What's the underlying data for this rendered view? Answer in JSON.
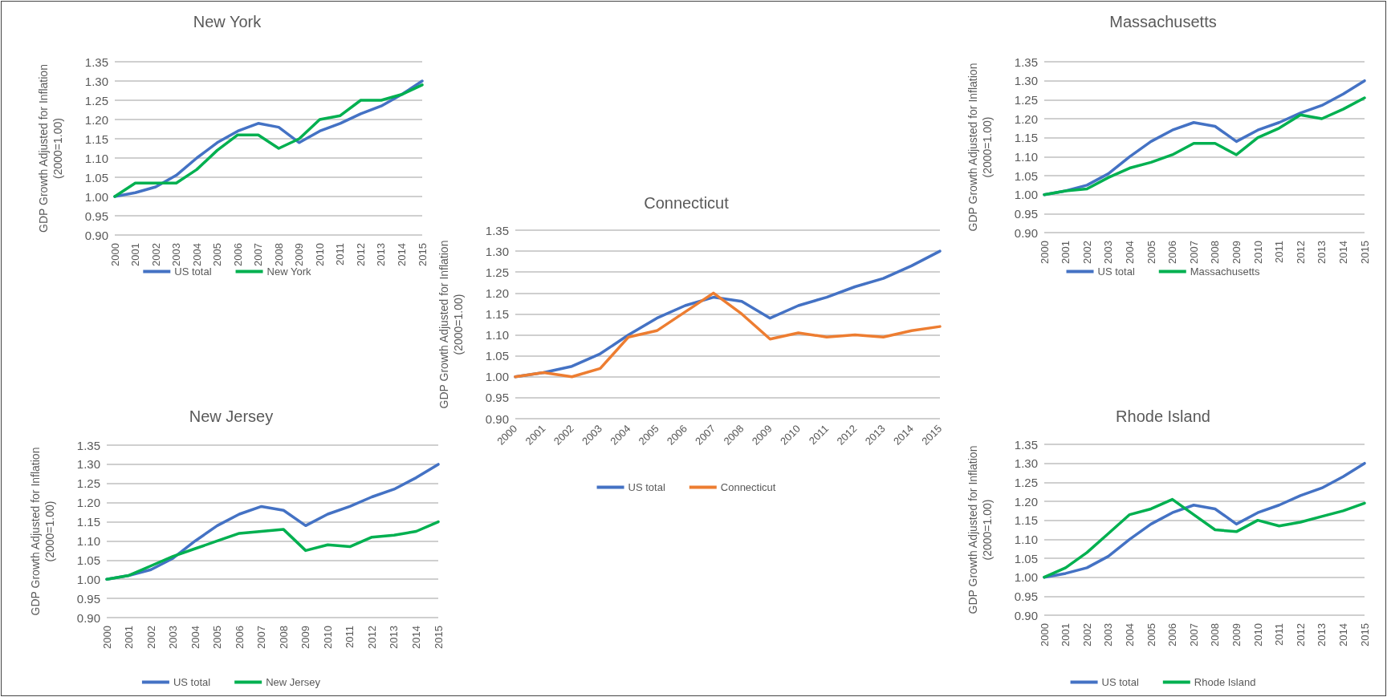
{
  "chart_data": [
    {
      "type": "line",
      "title": "New York",
      "ylabel": "GDP Growth Adjusted for Inflation\n(2000=1.00)",
      "categories": [
        "2000",
        "2001",
        "2002",
        "2003",
        "2004",
        "2005",
        "2006",
        "2007",
        "2008",
        "2009",
        "2010",
        "2011",
        "2012",
        "2013",
        "2014",
        "2015"
      ],
      "series": [
        {
          "name": "US total",
          "color": "#4472c4",
          "values": [
            1.0,
            1.01,
            1.025,
            1.055,
            1.1,
            1.14,
            1.17,
            1.19,
            1.18,
            1.14,
            1.17,
            1.19,
            1.215,
            1.235,
            1.265,
            1.3
          ]
        },
        {
          "name": "New York",
          "color": "#00b050",
          "values": [
            1.0,
            1.035,
            1.035,
            1.035,
            1.07,
            1.12,
            1.16,
            1.16,
            1.125,
            1.15,
            1.2,
            1.21,
            1.25,
            1.25,
            1.265,
            1.29
          ]
        }
      ],
      "ylim": [
        0.9,
        1.35
      ],
      "yticks": [
        {
          "value": 0.9,
          "label": "0.90"
        },
        {
          "value": 0.95,
          "label": "0.95"
        },
        {
          "value": 1.0,
          "label": "1.00"
        },
        {
          "value": 1.05,
          "label": "1.05"
        },
        {
          "value": 1.1,
          "label": "1.10"
        },
        {
          "value": 1.15,
          "label": "1.15"
        },
        {
          "value": 1.2,
          "label": "1.20"
        },
        {
          "value": 1.25,
          "label": "1.25"
        },
        {
          "value": 1.3,
          "label": "1.30"
        },
        {
          "value": 1.35,
          "label": "1.35"
        }
      ],
      "grid": "y",
      "legend": "bottom",
      "marker": "none",
      "line_style": "solid"
    },
    {
      "type": "line",
      "title": "Massachusetts",
      "ylabel": "GDP Growth Adjusted for Inflation\n(2000=1.00)",
      "categories": [
        "2000",
        "2001",
        "2002",
        "2003",
        "2004",
        "2005",
        "2006",
        "2007",
        "2008",
        "2009",
        "2010",
        "2011",
        "2012",
        "2013",
        "2014",
        "2015"
      ],
      "series": [
        {
          "name": "US total",
          "color": "#4472c4",
          "values": [
            1.0,
            1.01,
            1.025,
            1.055,
            1.1,
            1.14,
            1.17,
            1.19,
            1.18,
            1.14,
            1.17,
            1.19,
            1.215,
            1.235,
            1.265,
            1.3
          ]
        },
        {
          "name": "Massachusetts",
          "color": "#00b050",
          "values": [
            1.0,
            1.01,
            1.015,
            1.045,
            1.07,
            1.085,
            1.105,
            1.135,
            1.135,
            1.105,
            1.15,
            1.175,
            1.21,
            1.2,
            1.225,
            1.255
          ]
        }
      ],
      "ylim": [
        0.9,
        1.35
      ],
      "yticks": [
        {
          "value": 0.9,
          "label": "0.90"
        },
        {
          "value": 0.95,
          "label": "0.95"
        },
        {
          "value": 1.0,
          "label": "1.00"
        },
        {
          "value": 1.05,
          "label": "1.05"
        },
        {
          "value": 1.1,
          "label": "1.10"
        },
        {
          "value": 1.15,
          "label": "1.15"
        },
        {
          "value": 1.2,
          "label": "1.20"
        },
        {
          "value": 1.25,
          "label": "1.25"
        },
        {
          "value": 1.3,
          "label": "1.30"
        },
        {
          "value": 1.35,
          "label": "1.35"
        }
      ],
      "grid": "y",
      "legend": "bottom",
      "marker": "none",
      "line_style": "solid"
    },
    {
      "type": "line",
      "title": "Connecticut",
      "ylabel": "GDP Growth Adjusted for Inflation\n(2000=1.00)",
      "categories": [
        "2000",
        "2001",
        "2002",
        "2003",
        "2004",
        "2005",
        "2006",
        "2007",
        "2008",
        "2009",
        "2010",
        "2011",
        "2012",
        "2013",
        "2014",
        "2015"
      ],
      "series": [
        {
          "name": "US total",
          "color": "#4472c4",
          "values": [
            1.0,
            1.01,
            1.025,
            1.055,
            1.1,
            1.14,
            1.17,
            1.19,
            1.18,
            1.14,
            1.17,
            1.19,
            1.215,
            1.235,
            1.265,
            1.3
          ]
        },
        {
          "name": "Connecticut",
          "color": "#ed7d31",
          "values": [
            1.0,
            1.01,
            1.0,
            1.02,
            1.095,
            1.11,
            1.155,
            1.2,
            1.15,
            1.09,
            1.105,
            1.095,
            1.1,
            1.095,
            1.11,
            1.12
          ]
        }
      ],
      "ylim": [
        0.9,
        1.35
      ],
      "yticks": [
        {
          "value": 0.9,
          "label": "0.90"
        },
        {
          "value": 0.95,
          "label": "0.95"
        },
        {
          "value": 1.0,
          "label": "1.00"
        },
        {
          "value": 1.05,
          "label": "1.05"
        },
        {
          "value": 1.1,
          "label": "1.10"
        },
        {
          "value": 1.15,
          "label": "1.15"
        },
        {
          "value": 1.2,
          "label": "1.20"
        },
        {
          "value": 1.25,
          "label": "1.25"
        },
        {
          "value": 1.3,
          "label": "1.30"
        },
        {
          "value": 1.35,
          "label": "1.35"
        }
      ],
      "grid": "y",
      "legend": "bottom",
      "marker": "none",
      "line_style": "solid"
    },
    {
      "type": "line",
      "title": "New Jersey",
      "ylabel": "GDP Growth Adjusted for Inflation\n(2000=1.00)",
      "categories": [
        "2000",
        "2001",
        "2002",
        "2003",
        "2004",
        "2005",
        "2006",
        "2007",
        "2008",
        "2009",
        "2010",
        "2011",
        "2012",
        "2013",
        "2014",
        "2015"
      ],
      "series": [
        {
          "name": "US total",
          "color": "#4472c4",
          "values": [
            1.0,
            1.01,
            1.025,
            1.055,
            1.1,
            1.14,
            1.17,
            1.19,
            1.18,
            1.14,
            1.17,
            1.19,
            1.215,
            1.235,
            1.265,
            1.3
          ]
        },
        {
          "name": "New Jersey",
          "color": "#00b050",
          "values": [
            1.0,
            1.01,
            1.035,
            1.06,
            1.08,
            1.1,
            1.12,
            1.125,
            1.13,
            1.075,
            1.09,
            1.085,
            1.11,
            1.115,
            1.125,
            1.15
          ]
        }
      ],
      "ylim": [
        0.9,
        1.35
      ],
      "yticks": [
        {
          "value": 0.9,
          "label": "0.90"
        },
        {
          "value": 0.95,
          "label": "0.95"
        },
        {
          "value": 1.0,
          "label": "1.00"
        },
        {
          "value": 1.05,
          "label": "1.05"
        },
        {
          "value": 1.1,
          "label": "1.10"
        },
        {
          "value": 1.15,
          "label": "1.15"
        },
        {
          "value": 1.2,
          "label": "1.20"
        },
        {
          "value": 1.25,
          "label": "1.25"
        },
        {
          "value": 1.3,
          "label": "1.30"
        },
        {
          "value": 1.35,
          "label": "1.35"
        }
      ],
      "grid": "y",
      "legend": "bottom",
      "marker": "none",
      "line_style": "solid"
    },
    {
      "type": "line",
      "title": "Rhode Island",
      "ylabel": "GDP Growth Adjusted for Inflation\n(2000=1.00)",
      "categories": [
        "2000",
        "2001",
        "2002",
        "2003",
        "2004",
        "2005",
        "2006",
        "2007",
        "2008",
        "2009",
        "2010",
        "2011",
        "2012",
        "2013",
        "2014",
        "2015"
      ],
      "series": [
        {
          "name": "US total",
          "color": "#4472c4",
          "values": [
            1.0,
            1.01,
            1.025,
            1.055,
            1.1,
            1.14,
            1.17,
            1.19,
            1.18,
            1.14,
            1.17,
            1.19,
            1.215,
            1.235,
            1.265,
            1.3
          ]
        },
        {
          "name": "Rhode Island",
          "color": "#00b050",
          "values": [
            1.0,
            1.025,
            1.065,
            1.115,
            1.165,
            1.18,
            1.205,
            1.165,
            1.125,
            1.12,
            1.15,
            1.135,
            1.145,
            1.16,
            1.175,
            1.195
          ]
        }
      ],
      "ylim": [
        0.9,
        1.35
      ],
      "yticks": [
        {
          "value": 0.9,
          "label": "0.90"
        },
        {
          "value": 0.95,
          "label": "0.95"
        },
        {
          "value": 1.0,
          "label": "1.00"
        },
        {
          "value": 1.05,
          "label": "1.05"
        },
        {
          "value": 1.1,
          "label": "1.10"
        },
        {
          "value": 1.15,
          "label": "1.15"
        },
        {
          "value": 1.2,
          "label": "1.20"
        },
        {
          "value": 1.25,
          "label": "1.25"
        },
        {
          "value": 1.3,
          "label": "1.30"
        },
        {
          "value": 1.35,
          "label": "1.35"
        }
      ],
      "grid": "y",
      "legend": "bottom",
      "marker": "none",
      "line_style": "solid"
    }
  ]
}
